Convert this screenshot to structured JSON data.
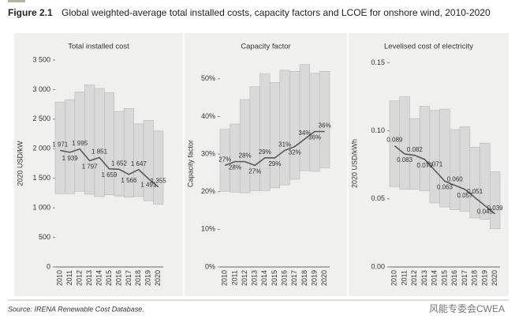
{
  "figure": {
    "label": "Figure 2.1",
    "title": "Global weighted-average total installed costs, capacity factors and LCOE for onshore wind, 2010-2020"
  },
  "source": "Source: IRENA Renewable Cost Database.",
  "watermark": "风能专委会CWEA",
  "chart_data": [
    {
      "type": "range",
      "title": "Total installed cost",
      "ylabel": "2020 USD/kW",
      "categories": [
        "2010",
        "2011",
        "2012",
        "2013",
        "2014",
        "2015",
        "2016",
        "2017",
        "2018",
        "2019",
        "2020"
      ],
      "low": [
        1240,
        1240,
        1280,
        1230,
        1190,
        1220,
        1200,
        1180,
        1190,
        1120,
        1060
      ],
      "high": [
        2790,
        2830,
        2960,
        3080,
        3020,
        2950,
        2630,
        2680,
        2420,
        2480,
        2300
      ],
      "values": [
        1971,
        1939,
        1995,
        1797,
        1851,
        1659,
        1652,
        1566,
        1647,
        1491,
        1355
      ],
      "value_labels": [
        "1 971",
        "1 939",
        "1 995",
        "1 797",
        "1 851",
        "1 659",
        "1 652",
        "1 566",
        "1 647",
        "1 491",
        "1 355"
      ],
      "band_color": "#d9d9d9",
      "line_color": "#595959",
      "ylim": [
        0,
        3500
      ],
      "yticks": [
        0,
        500,
        {
          "value": 1000,
          "label": "1 000"
        },
        {
          "value": 1500,
          "label": "1 500"
        },
        {
          "value": 2000,
          "label": "2 000"
        },
        {
          "value": 2500,
          "label": "2 500"
        },
        {
          "value": 3000,
          "label": "3 000"
        },
        {
          "value": 3500,
          "label": "3 500"
        }
      ]
    },
    {
      "type": "range",
      "title": "Capacity factor",
      "ylabel": "Capacity factor",
      "categories": [
        "2010",
        "2011",
        "2012",
        "2013",
        "2014",
        "2015",
        "2016",
        "2017",
        "2018",
        "2019",
        "2020"
      ],
      "low": [
        20.1,
        19.9,
        19.7,
        20.3,
        20.3,
        21,
        21.8,
        23.3,
        25.6,
        25.4,
        26.3
      ],
      "high": [
        36.6,
        38,
        44.5,
        47.9,
        51.3,
        49,
        52.3,
        52,
        53.8,
        51.5,
        52
      ],
      "values": [
        27,
        28,
        28,
        27,
        29,
        29,
        31,
        32,
        34,
        36,
        36
      ],
      "value_labels": [
        "27%",
        "28%",
        "28%",
        "27%",
        "29%",
        "29%",
        "31%",
        "32%",
        "34%",
        "36%",
        "36%"
      ],
      "band_color": "#d9d9d9",
      "line_color": "#595959",
      "ylim": [
        0,
        55
      ],
      "yticks": [
        {
          "value": 0,
          "label": "0%"
        },
        {
          "value": 10,
          "label": "10%"
        },
        {
          "value": 20,
          "label": "20%"
        },
        {
          "value": 30,
          "label": "30%"
        },
        {
          "value": 40,
          "label": "40%"
        },
        {
          "value": 50,
          "label": "50%"
        }
      ]
    },
    {
      "type": "range",
      "title": "Levelised cost of electricity",
      "ylabel": "2020 USD/kWh",
      "categories": [
        "2010",
        "2011",
        "2012",
        "2013",
        "2014",
        "2015",
        "2016",
        "2017",
        "2018",
        "2019",
        "2020"
      ],
      "low": [
        0.059,
        0.057,
        0.057,
        0.056,
        0.047,
        0.044,
        0.042,
        0.041,
        0.036,
        0.035,
        0.028
      ],
      "high": [
        0.122,
        0.125,
        0.109,
        0.118,
        0.115,
        0.116,
        0.101,
        0.103,
        0.088,
        0.091,
        0.07
      ],
      "values": [
        0.089,
        0.083,
        0.082,
        0.079,
        0.071,
        0.063,
        0.06,
        0.057,
        0.051,
        0.045,
        0.039
      ],
      "value_labels": [
        "0.089",
        "0.083",
        "0.082",
        "0.079",
        "0.071",
        "0.063",
        "0.060",
        "0.057",
        "0.051",
        "0.045",
        "0.039"
      ],
      "band_color": "#d9d9d9",
      "line_color": "#595959",
      "ylim": [
        0,
        0.152
      ],
      "yticks": [
        {
          "value": 0,
          "label": "0.00"
        },
        {
          "value": 0.05,
          "label": "0.05"
        },
        {
          "value": 0.1,
          "label": "0.10"
        },
        {
          "value": 0.15,
          "label": "0.15"
        }
      ]
    }
  ]
}
